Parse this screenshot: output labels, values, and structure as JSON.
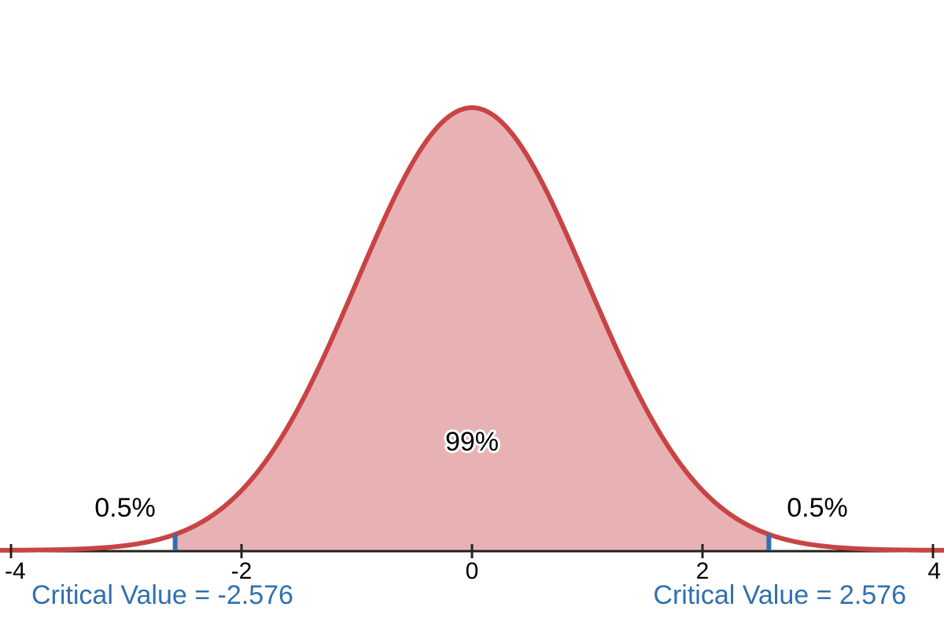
{
  "chart_data": {
    "type": "area",
    "title": "",
    "distribution": "standard normal",
    "mean": 0,
    "sd": 1,
    "xlim": [
      -4,
      4
    ],
    "ylim": [
      0,
      0.45
    ],
    "x_ticks": [
      -4,
      -2,
      0,
      2,
      4
    ],
    "x_tick_labels": [
      "-4",
      "-2",
      "0",
      "2",
      "4"
    ],
    "critical_values": [
      -2.576,
      2.576
    ],
    "shaded_region": {
      "from": -2.576,
      "to": 2.576,
      "area_label": "99%"
    },
    "tails": [
      {
        "side": "left",
        "label": "0.5%"
      },
      {
        "side": "right",
        "label": "0.5%"
      }
    ],
    "annotations": {
      "left_critical": "Critical Value = -2.576",
      "right_critical": "Critical Value = 2.576"
    },
    "colors": {
      "curve": "#C84444",
      "fill": "#E8B2B4",
      "critical_marker": "#3070B0",
      "axis": "#222222"
    }
  }
}
